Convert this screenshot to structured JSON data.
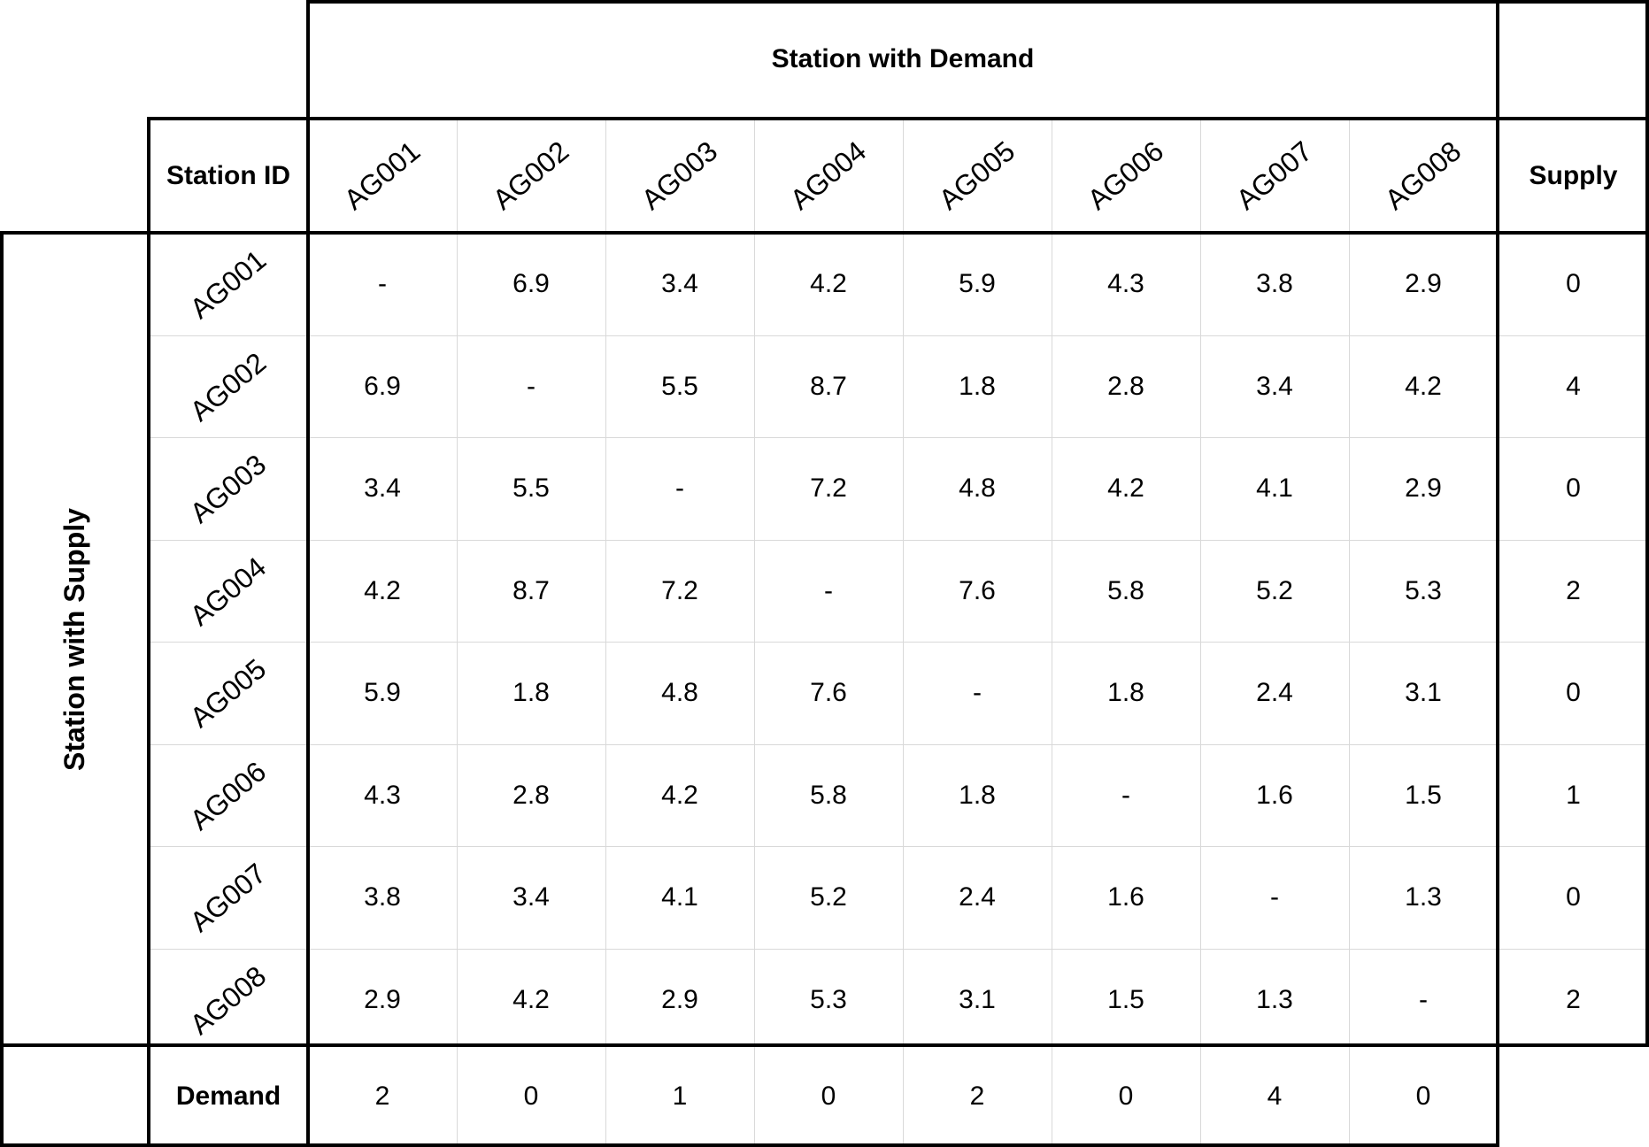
{
  "table": {
    "demand_header": "Station with Demand",
    "supply_header": "Station with Supply",
    "id_header": "Station ID",
    "supply_col_header": "Supply",
    "demand_row_header": "Demand",
    "column_ids": [
      "AG001",
      "AG002",
      "AG003",
      "AG004",
      "AG005",
      "AG006",
      "AG007",
      "AG008"
    ],
    "rows": [
      {
        "id": "AG001",
        "values": [
          "-",
          "6.9",
          "3.4",
          "4.2",
          "5.9",
          "4.3",
          "3.8",
          "2.9"
        ],
        "supply": "0"
      },
      {
        "id": "AG002",
        "values": [
          "6.9",
          "-",
          "5.5",
          "8.7",
          "1.8",
          "2.8",
          "3.4",
          "4.2"
        ],
        "supply": "4"
      },
      {
        "id": "AG003",
        "values": [
          "3.4",
          "5.5",
          "-",
          "7.2",
          "4.8",
          "4.2",
          "4.1",
          "2.9"
        ],
        "supply": "0"
      },
      {
        "id": "AG004",
        "values": [
          "4.2",
          "8.7",
          "7.2",
          "-",
          "7.6",
          "5.8",
          "5.2",
          "5.3"
        ],
        "supply": "2"
      },
      {
        "id": "AG005",
        "values": [
          "5.9",
          "1.8",
          "4.8",
          "7.6",
          "-",
          "1.8",
          "2.4",
          "3.1"
        ],
        "supply": "0"
      },
      {
        "id": "AG006",
        "values": [
          "4.3",
          "2.8",
          "4.2",
          "5.8",
          "1.8",
          "-",
          "1.6",
          "1.5"
        ],
        "supply": "1"
      },
      {
        "id": "AG007",
        "values": [
          "3.8",
          "3.4",
          "4.1",
          "5.2",
          "2.4",
          "1.6",
          "-",
          "1.3"
        ],
        "supply": "0"
      },
      {
        "id": "AG008",
        "values": [
          "2.9",
          "4.2",
          "2.9",
          "5.3",
          "3.1",
          "1.5",
          "1.3",
          "-"
        ],
        "supply": "2"
      }
    ],
    "demand": [
      "2",
      "0",
      "1",
      "0",
      "2",
      "0",
      "4",
      "0"
    ]
  }
}
